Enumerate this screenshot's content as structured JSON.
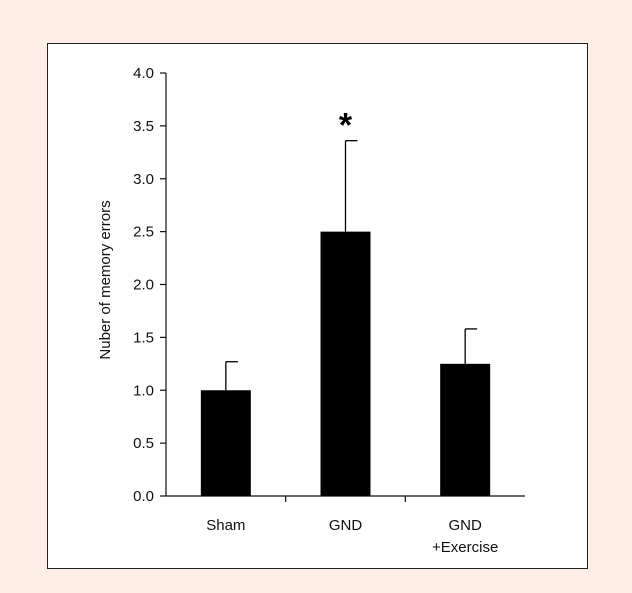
{
  "background_color": "#fdeee6",
  "chart_data": {
    "type": "bar",
    "title": "",
    "xlabel": "",
    "ylabel": "Nuber of memory errors",
    "categories": [
      [
        "Sham"
      ],
      [
        "GND"
      ],
      [
        "GND",
        "+Exercise"
      ]
    ],
    "series": [
      {
        "values": [
          1.0,
          2.5,
          1.25
        ],
        "error_upper": [
          0.27,
          0.86,
          0.33
        ],
        "color": "#000000"
      }
    ],
    "ylim": [
      0,
      4.0
    ],
    "yticks": [
      "0.0",
      "0.5",
      "1.0",
      "1.5",
      "2.0",
      "2.5",
      "3.0",
      "3.5",
      "4.0"
    ],
    "annotations": [
      {
        "category_index": 1,
        "text": "*"
      }
    ],
    "grid": false,
    "legend": "none"
  }
}
